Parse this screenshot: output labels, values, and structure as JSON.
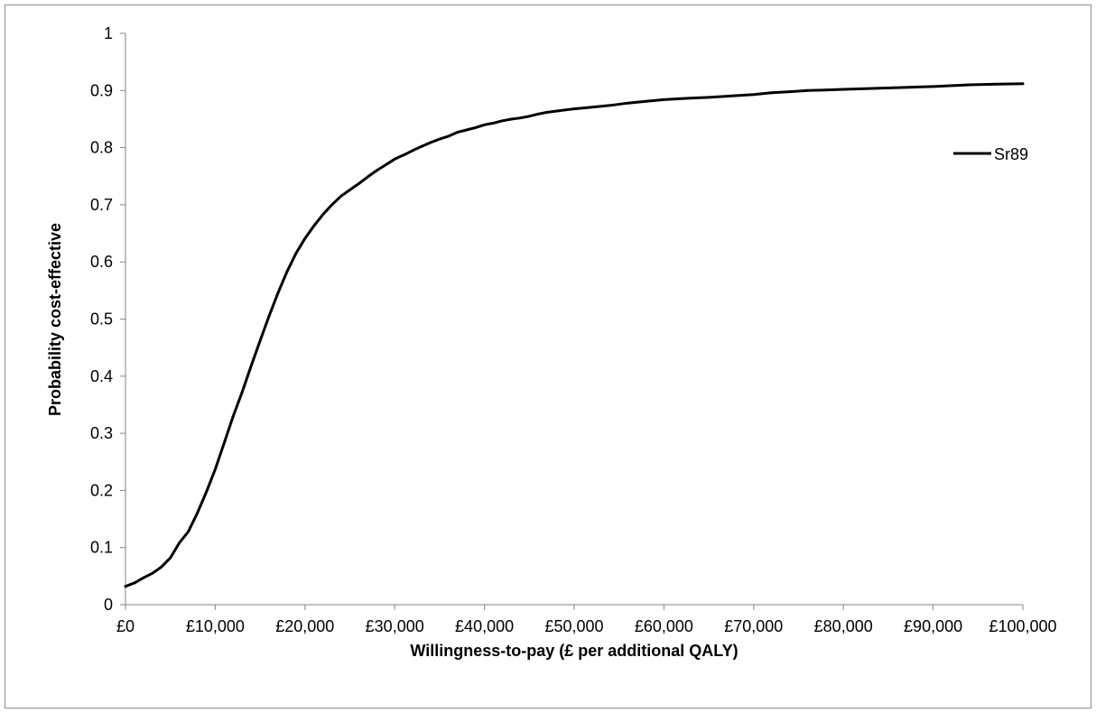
{
  "chart_data": {
    "type": "line",
    "xlabel": "Willingness-to-pay (£ per additional QALY)",
    "ylabel": "Probability cost-effective",
    "xlim": [
      0,
      100000
    ],
    "ylim": [
      0,
      1
    ],
    "x_ticks": [
      0,
      10000,
      20000,
      30000,
      40000,
      50000,
      60000,
      70000,
      80000,
      90000,
      100000
    ],
    "x_tick_labels": [
      "£0",
      "£10,000",
      "£20,000",
      "£30,000",
      "£40,000",
      "£50,000",
      "£60,000",
      "£70,000",
      "£80,000",
      "£90,000",
      "£100,000"
    ],
    "y_ticks": [
      0,
      0.1,
      0.2,
      0.3,
      0.4,
      0.5,
      0.6,
      0.7,
      0.8,
      0.9,
      1
    ],
    "y_tick_labels": [
      "0",
      "0.1",
      "0.2",
      "0.3",
      "0.4",
      "0.5",
      "0.6",
      "0.7",
      "0.8",
      "0.9",
      "1"
    ],
    "grid": false,
    "legend_position": "right",
    "series": [
      {
        "name": "Sr89",
        "color": "#000000",
        "x": [
          0,
          1000,
          2000,
          3000,
          4000,
          5000,
          6000,
          7000,
          8000,
          9000,
          10000,
          11000,
          12000,
          13000,
          14000,
          15000,
          16000,
          17000,
          18000,
          19000,
          20000,
          21000,
          22000,
          23000,
          24000,
          25000,
          26000,
          27000,
          28000,
          29000,
          30000,
          31000,
          32000,
          33000,
          34000,
          35000,
          36000,
          37000,
          38000,
          39000,
          40000,
          41000,
          42000,
          43000,
          44000,
          45000,
          46000,
          47000,
          48000,
          49000,
          50000,
          52000,
          54000,
          56000,
          58000,
          60000,
          62000,
          65000,
          68000,
          70000,
          72000,
          74000,
          76000,
          78000,
          80000,
          84000,
          88000,
          90000,
          94000,
          97000,
          100000
        ],
        "y": [
          0.032,
          0.038,
          0.047,
          0.055,
          0.066,
          0.082,
          0.108,
          0.128,
          0.16,
          0.197,
          0.237,
          0.283,
          0.33,
          0.372,
          0.418,
          0.462,
          0.505,
          0.546,
          0.583,
          0.615,
          0.641,
          0.663,
          0.683,
          0.7,
          0.715,
          0.726,
          0.737,
          0.749,
          0.76,
          0.77,
          0.78,
          0.787,
          0.795,
          0.802,
          0.809,
          0.815,
          0.82,
          0.827,
          0.831,
          0.835,
          0.84,
          0.843,
          0.847,
          0.85,
          0.852,
          0.855,
          0.859,
          0.862,
          0.864,
          0.866,
          0.868,
          0.871,
          0.874,
          0.878,
          0.881,
          0.884,
          0.886,
          0.888,
          0.891,
          0.893,
          0.896,
          0.898,
          0.9,
          0.901,
          0.902,
          0.904,
          0.906,
          0.907,
          0.91,
          0.911,
          0.912
        ]
      }
    ]
  }
}
